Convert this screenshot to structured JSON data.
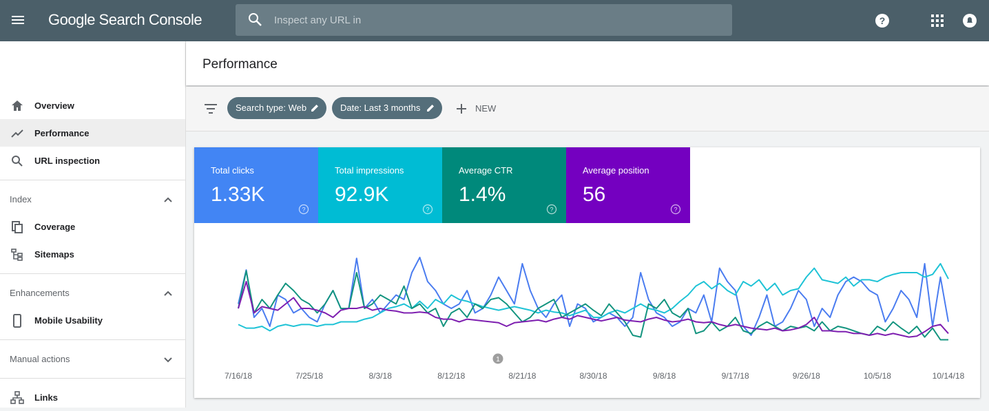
{
  "header": {
    "product": "Google Search Console",
    "search_placeholder": "Inspect any URL in"
  },
  "sidebar": {
    "items": [
      "Overview",
      "Performance",
      "URL inspection"
    ],
    "sections": [
      {
        "title": "Index",
        "items": [
          "Coverage",
          "Sitemaps"
        ]
      },
      {
        "title": "Enhancements",
        "items": [
          "Mobile Usability"
        ]
      },
      {
        "title": "Manual actions",
        "items": []
      }
    ],
    "footer_items": [
      "Links"
    ]
  },
  "page_title": "Performance",
  "filters": [
    "Search type: Web",
    "Date: Last 3 months"
  ],
  "new_button": "NEW",
  "totals": [
    "1.33K",
    "92.9K",
    "1.4%",
    "56"
  ],
  "chart_data": {
    "type": "line",
    "categories": [
      "7/16/18",
      null,
      null,
      null,
      null,
      null,
      null,
      null,
      null,
      "7/25/18",
      null,
      null,
      null,
      null,
      null,
      null,
      null,
      null,
      "8/3/18",
      null,
      null,
      null,
      null,
      null,
      null,
      null,
      null,
      "8/12/18",
      null,
      null,
      null,
      null,
      null,
      null,
      null,
      null,
      "8/21/18",
      null,
      null,
      null,
      null,
      null,
      null,
      null,
      null,
      "8/30/18",
      null,
      null,
      null,
      null,
      null,
      null,
      null,
      null,
      "9/8/18",
      null,
      null,
      null,
      null,
      null,
      null,
      null,
      null,
      "9/17/18",
      null,
      null,
      null,
      null,
      null,
      null,
      null,
      null,
      "9/26/18",
      null,
      null,
      null,
      null,
      null,
      null,
      null,
      null,
      "10/5/18",
      null,
      null,
      null,
      null,
      null,
      null,
      null,
      null,
      "10/14/18"
    ],
    "ylim": [
      0,
      100
    ],
    "series": [
      {
        "name": "Total clicks",
        "color": "#4a7cf0",
        "card_color": "#4285f4",
        "values": [
          45,
          83,
          30,
          40,
          20,
          55,
          50,
          35,
          40,
          30,
          25,
          45,
          60,
          40,
          40,
          96,
          40,
          50,
          35,
          45,
          55,
          50,
          80,
          97,
          70,
          60,
          45,
          40,
          45,
          60,
          35,
          40,
          55,
          75,
          60,
          45,
          90,
          60,
          40,
          30,
          45,
          55,
          20,
          45,
          40,
          25,
          30,
          35,
          30,
          20,
          30,
          80,
          50,
          35,
          30,
          20,
          25,
          40,
          35,
          55,
          25,
          85,
          70,
          60,
          20,
          10,
          30,
          55,
          20,
          25,
          40,
          60,
          50,
          20,
          40,
          30,
          55,
          70,
          75,
          70,
          60,
          55,
          25,
          40,
          60,
          50,
          30,
          90,
          20,
          75,
          25
        ]
      },
      {
        "name": "Total impressions",
        "color": "#1fc3d6",
        "card_color": "#00bcd4",
        "values": [
          22,
          18,
          18,
          20,
          15,
          20,
          22,
          20,
          22,
          22,
          20,
          22,
          22,
          25,
          25,
          25,
          28,
          30,
          35,
          40,
          42,
          45,
          40,
          48,
          40,
          50,
          45,
          55,
          50,
          48,
          45,
          42,
          40,
          38,
          40,
          42,
          40,
          38,
          35,
          38,
          36,
          35,
          32,
          35,
          38,
          30,
          30,
          35,
          38,
          35,
          40,
          45,
          40,
          38,
          35,
          40,
          48,
          55,
          65,
          70,
          62,
          68,
          60,
          55,
          70,
          65,
          72,
          60,
          68,
          55,
          60,
          62,
          75,
          85,
          72,
          70,
          68,
          75,
          65,
          72,
          72,
          70,
          75,
          78,
          80,
          80,
          80,
          75,
          78,
          90,
          73
        ]
      },
      {
        "name": "Average CTR",
        "color": "#13947f",
        "card_color": "#00897b",
        "values": [
          40,
          82,
          35,
          50,
          40,
          55,
          68,
          60,
          50,
          45,
          35,
          45,
          60,
          40,
          40,
          80,
          40,
          45,
          55,
          50,
          45,
          65,
          40,
          45,
          35,
          40,
          20,
          35,
          40,
          30,
          45,
          40,
          50,
          52,
          45,
          35,
          25,
          30,
          40,
          45,
          50,
          30,
          35,
          40,
          45,
          38,
          32,
          45,
          35,
          25,
          10,
          8,
          45,
          40,
          50,
          35,
          30,
          40,
          12,
          15,
          25,
          15,
          20,
          30,
          15,
          12,
          20,
          25,
          20,
          15,
          20,
          18,
          20,
          15,
          25,
          15,
          20,
          18,
          15,
          12,
          10,
          20,
          15,
          25,
          18,
          12,
          20,
          8,
          18,
          5,
          5
        ]
      },
      {
        "name": "Average position",
        "color": "#7e1fb0",
        "card_color": "#7400c0",
        "values": [
          40,
          70,
          35,
          42,
          40,
          38,
          45,
          52,
          40,
          40,
          38,
          35,
          30,
          38,
          40,
          40,
          42,
          38,
          40,
          38,
          37,
          35,
          35,
          36,
          35,
          30,
          28,
          28,
          25,
          28,
          27,
          26,
          25,
          24,
          20,
          24,
          25,
          26,
          27,
          25,
          28,
          30,
          28,
          32,
          30,
          28,
          26,
          28,
          30,
          27,
          26,
          25,
          28,
          30,
          27,
          25,
          26,
          28,
          25,
          24,
          25,
          22,
          20,
          22,
          20,
          18,
          17,
          16,
          18,
          15,
          16,
          18,
          22,
          30,
          15,
          15,
          14,
          14,
          12,
          12,
          10,
          12,
          10,
          12,
          10,
          8,
          9,
          14,
          20,
          22,
          12
        ]
      }
    ],
    "annotations": [
      "1"
    ]
  }
}
